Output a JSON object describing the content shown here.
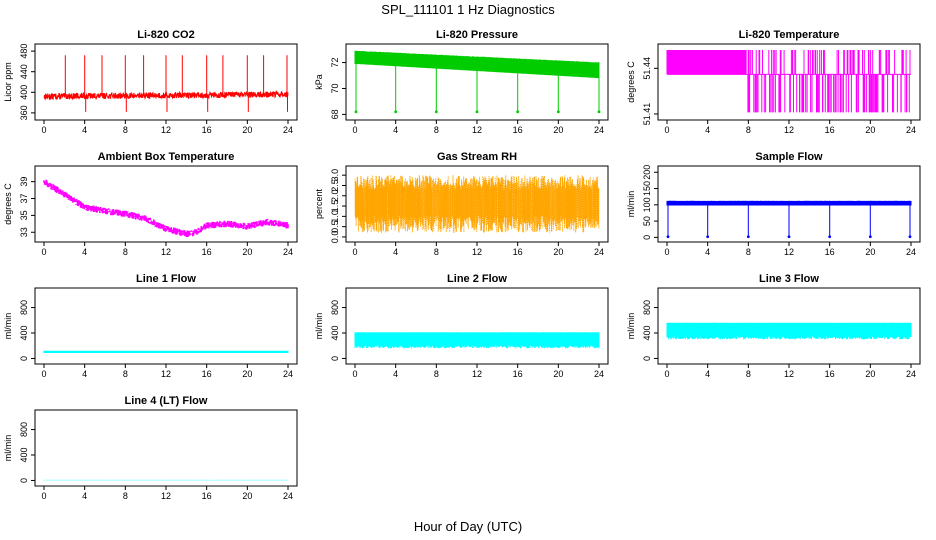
{
  "figure": {
    "title": "SPL_111101  1 Hz Diagnostics",
    "xlabel": "Hour of Day (UTC)"
  },
  "chart_data": [
    {
      "id": "co2",
      "type": "line",
      "title": "Li-820 CO2",
      "ylabel": "Licor ppm",
      "color": "#ff0000",
      "xlim": [
        0,
        24
      ],
      "ylim": [
        352,
        488
      ],
      "xticks": [
        "0",
        "4",
        "8",
        "12",
        "16",
        "20",
        "24"
      ],
      "yticks": [
        "360",
        "400",
        "440",
        "480"
      ],
      "series": [
        {
          "name": "CO2",
          "style": "baseline_spikes",
          "baseline": [
            392,
            396
          ],
          "noise": 6,
          "spikes_up": [
            2.1,
            4.0,
            5.7,
            8.0,
            9.8,
            12.0,
            13.6,
            16.0,
            17.6,
            20.0,
            21.6,
            23.9
          ],
          "spike_top": 472,
          "spikes_down": [
            4.1,
            8.1,
            12.1,
            16.1,
            20.1,
            23.95
          ],
          "spike_bottom": 362
        }
      ]
    },
    {
      "id": "pressure",
      "type": "line",
      "title": "Li-820 Pressure",
      "ylabel": "kPa",
      "color": "#00cc00",
      "xlim": [
        0,
        24
      ],
      "ylim": [
        67.8,
        73.2
      ],
      "xticks": [
        "0",
        "4",
        "8",
        "12",
        "16",
        "20",
        "24"
      ],
      "yticks": [
        "68",
        "70",
        "72"
      ],
      "series": [
        {
          "name": "Pressure",
          "style": "band_spikes",
          "band_top": [
            72.9,
            72.0
          ],
          "band_bottom": [
            71.9,
            70.8
          ],
          "spikes_down": [
            0.1,
            4.0,
            8.0,
            12.0,
            16.0,
            20.0,
            24.0
          ],
          "spike_bottom": 68.2
        }
      ]
    },
    {
      "id": "li820temp",
      "type": "line",
      "title": "Li-820 Temperature",
      "ylabel": "degrees C",
      "color": "#ff00ff",
      "xlim": [
        0,
        24
      ],
      "ylim": [
        51.408,
        51.454
      ],
      "xticks": [
        "0",
        "4",
        "8",
        "12",
        "16",
        "20",
        "24"
      ],
      "yticks": [
        "51.41",
        "51.44"
      ],
      "series": [
        {
          "name": "Temperature",
          "style": "quantized",
          "levels": [
            51.411,
            51.436,
            51.452
          ],
          "switch_hour": 7.8
        }
      ]
    },
    {
      "id": "ambient",
      "type": "line",
      "title": "Ambient Box Temperature",
      "ylabel": "degrees C",
      "color": "#ff00ff",
      "xlim": [
        0,
        24
      ],
      "ylim": [
        32.2,
        40.5
      ],
      "xticks": [
        "0",
        "4",
        "8",
        "12",
        "16",
        "20",
        "24"
      ],
      "yticks": [
        "33",
        "35",
        "37",
        "39"
      ],
      "series": [
        {
          "name": "Ambient",
          "style": "curve",
          "noise": 0.8,
          "x": [
            0,
            2,
            4,
            6,
            8,
            10,
            12,
            14,
            15,
            16,
            18,
            20,
            22,
            24
          ],
          "y": [
            39.0,
            37.5,
            36.0,
            35.5,
            35.2,
            34.6,
            33.4,
            32.8,
            33.0,
            33.8,
            34.0,
            33.7,
            34.2,
            33.8
          ]
        }
      ]
    },
    {
      "id": "rh",
      "type": "line",
      "title": "Gas Stream RH",
      "ylabel": "percent",
      "color": "#ffa500",
      "xlim": [
        0,
        24
      ],
      "ylim": [
        -0.1,
        3.3
      ],
      "xticks": [
        "0",
        "4",
        "8",
        "12",
        "16",
        "20",
        "24"
      ],
      "yticks": [
        "0.0",
        "0.5",
        "1.0",
        "1.5",
        "2.0",
        "2.5",
        "3.0"
      ],
      "series": [
        {
          "name": "RH",
          "style": "dense_oscillation",
          "low": 0.2,
          "high": 3.0,
          "mid": 1.6
        }
      ]
    },
    {
      "id": "sample",
      "type": "line",
      "title": "Sample Flow",
      "ylabel": "ml/min",
      "color": "#0000ff",
      "xlim": [
        0,
        24
      ],
      "ylim": [
        -5,
        210
      ],
      "xticks": [
        "0",
        "4",
        "8",
        "12",
        "16",
        "20",
        "24"
      ],
      "yticks": [
        "0",
        "50",
        "100",
        "150",
        "200"
      ],
      "series": [
        {
          "name": "Sample Flow",
          "style": "band_spikes",
          "band_top": [
            112,
            112
          ],
          "band_bottom": [
            98,
            98
          ],
          "spikes_down": [
            0.1,
            4.0,
            8.0,
            12.0,
            16.0,
            20.0,
            23.9
          ],
          "spike_bottom": 2
        }
      ]
    },
    {
      "id": "line1",
      "type": "line",
      "title": "Line 1 Flow",
      "ylabel": "ml/min",
      "color": "#00ffff",
      "xlim": [
        0,
        24
      ],
      "ylim": [
        -40,
        1060
      ],
      "xticks": [
        "0",
        "4",
        "8",
        "12",
        "16",
        "20",
        "24"
      ],
      "yticks": [
        "0",
        "400",
        "800"
      ],
      "series": [
        {
          "name": "Line 1",
          "style": "band",
          "band_top": [
            120,
            120
          ],
          "band_bottom": [
            85,
            85
          ]
        }
      ]
    },
    {
      "id": "line2",
      "type": "line",
      "title": "Line 2 Flow",
      "ylabel": "ml/min",
      "color": "#00ffff",
      "xlim": [
        0,
        24
      ],
      "ylim": [
        -40,
        1060
      ],
      "xticks": [
        "0",
        "4",
        "8",
        "12",
        "16",
        "20",
        "24"
      ],
      "yticks": [
        "0",
        "400",
        "800"
      ],
      "series": [
        {
          "name": "Line 2",
          "style": "stripes",
          "band_top": [
            410,
            410
          ],
          "band_bottom": [
            290,
            290
          ],
          "dip": 130
        }
      ]
    },
    {
      "id": "line3",
      "type": "line",
      "title": "Line 3 Flow",
      "ylabel": "ml/min",
      "color": "#00ffff",
      "xlim": [
        0,
        24
      ],
      "ylim": [
        -40,
        1060
      ],
      "xticks": [
        "0",
        "4",
        "8",
        "12",
        "16",
        "20",
        "24"
      ],
      "yticks": [
        "0",
        "400",
        "800"
      ],
      "series": [
        {
          "name": "Line 3",
          "style": "stripes",
          "band_top": [
            560,
            560
          ],
          "band_bottom": [
            420,
            420
          ],
          "dip": 120
        }
      ]
    },
    {
      "id": "line4",
      "type": "line",
      "title": "Line 4 (LT) Flow",
      "ylabel": "ml/min",
      "color": "#00ffff",
      "xlim": [
        0,
        24
      ],
      "ylim": [
        -40,
        1060
      ],
      "xticks": [
        "0",
        "4",
        "8",
        "12",
        "16",
        "20",
        "24"
      ],
      "yticks": [
        "0",
        "400",
        "800"
      ],
      "series": [
        {
          "name": "Line 4",
          "style": "band",
          "band_top": [
            8,
            8
          ],
          "band_bottom": [
            2,
            2
          ]
        }
      ]
    }
  ]
}
